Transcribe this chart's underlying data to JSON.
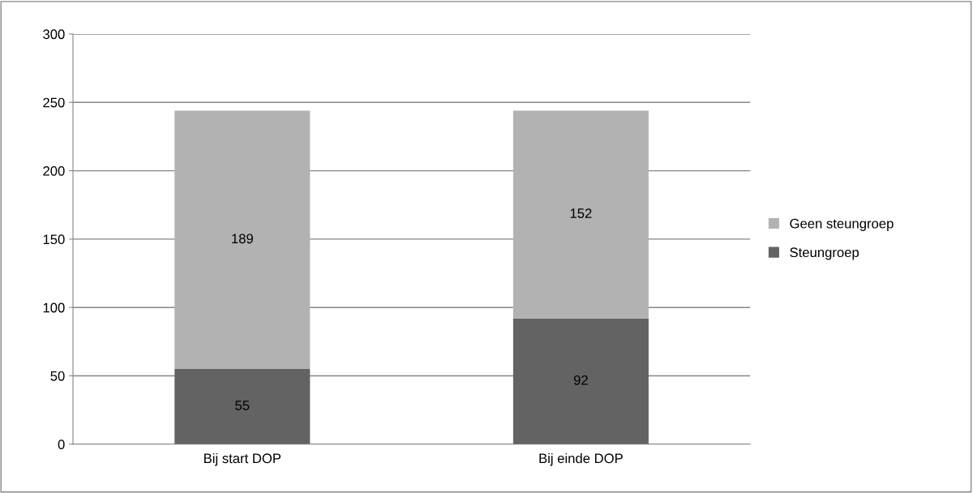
{
  "chart_data": {
    "type": "bar",
    "stacked": true,
    "categories": [
      "Bij start DOP",
      "Bij einde DOP"
    ],
    "series": [
      {
        "name": "Steungroep",
        "color": "#636363",
        "values": [
          55,
          92
        ]
      },
      {
        "name": "Geen steungroep",
        "color": "#b2b2b2",
        "values": [
          189,
          152
        ]
      }
    ],
    "ylim": [
      0,
      300
    ],
    "yticks": [
      0,
      50,
      100,
      150,
      200,
      250,
      300
    ],
    "grid": "y",
    "legend": "right",
    "data_labels": true
  }
}
